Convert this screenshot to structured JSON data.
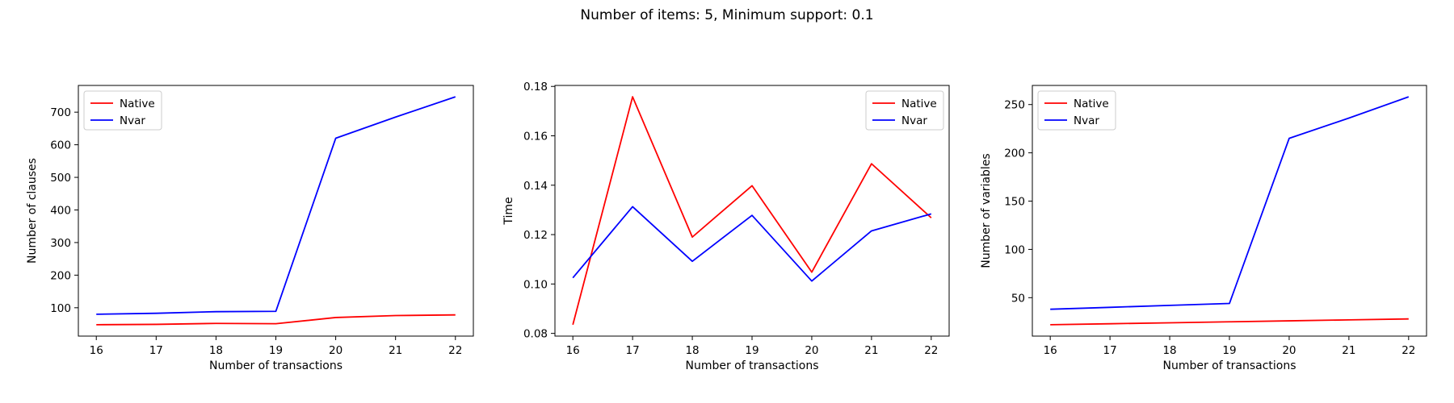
{
  "figure": {
    "title": "Number of items: 5, Minimum support: 0.1"
  },
  "chart_data": [
    {
      "type": "line",
      "x": [
        16,
        17,
        18,
        19,
        20,
        21,
        22
      ],
      "series": [
        {
          "name": "Native",
          "color": "#ff0000",
          "values": [
            48,
            49,
            52,
            51,
            70,
            76,
            78
          ]
        },
        {
          "name": "Nvar",
          "color": "#0000ff",
          "values": [
            80,
            83,
            88,
            89,
            620,
            685,
            747
          ]
        }
      ],
      "xlabel": "Number of transactions",
      "ylabel": "Number of clauses",
      "xlim": [
        15.7,
        22.3
      ],
      "ylim": [
        13,
        782
      ],
      "xticks": [
        16,
        17,
        18,
        19,
        20,
        21,
        22
      ],
      "yticks": [
        100,
        200,
        300,
        400,
        500,
        600,
        700
      ],
      "legend": "upper left"
    },
    {
      "type": "line",
      "x": [
        16,
        17,
        18,
        19,
        20,
        21,
        22
      ],
      "series": [
        {
          "name": "Native",
          "color": "#ff0000",
          "values": [
            0.0835,
            0.1758,
            0.119,
            0.1398,
            0.1048,
            0.1487,
            0.1268
          ]
        },
        {
          "name": "Nvar",
          "color": "#0000ff",
          "values": [
            0.1025,
            0.1313,
            0.1092,
            0.1278,
            0.1012,
            0.1215,
            0.1284
          ]
        }
      ],
      "xlabel": "Number of transactions",
      "ylabel": "Time",
      "xlim": [
        15.7,
        22.3
      ],
      "ylim": [
        0.0789,
        0.1804
      ],
      "xticks": [
        16,
        17,
        18,
        19,
        20,
        21,
        22
      ],
      "yticks": [
        0.08,
        0.1,
        0.12,
        0.14,
        0.16,
        0.18
      ],
      "ytick_labels": [
        "0.08",
        "0.10",
        "0.12",
        "0.14",
        "0.16",
        "0.18"
      ],
      "legend": "upper right"
    },
    {
      "type": "line",
      "x": [
        16,
        17,
        18,
        19,
        20,
        21,
        22
      ],
      "series": [
        {
          "name": "Native",
          "color": "#ff0000",
          "values": [
            22,
            23,
            24,
            25,
            26,
            27,
            28
          ]
        },
        {
          "name": "Nvar",
          "color": "#0000ff",
          "values": [
            38,
            40,
            42,
            44,
            215,
            236,
            258
          ]
        }
      ],
      "xlabel": "Number of transactions",
      "ylabel": "Number of variables",
      "xlim": [
        15.7,
        22.3
      ],
      "ylim": [
        10.2,
        269.8
      ],
      "xticks": [
        16,
        17,
        18,
        19,
        20,
        21,
        22
      ],
      "yticks": [
        50,
        100,
        150,
        200,
        250
      ],
      "legend": "upper left"
    }
  ]
}
